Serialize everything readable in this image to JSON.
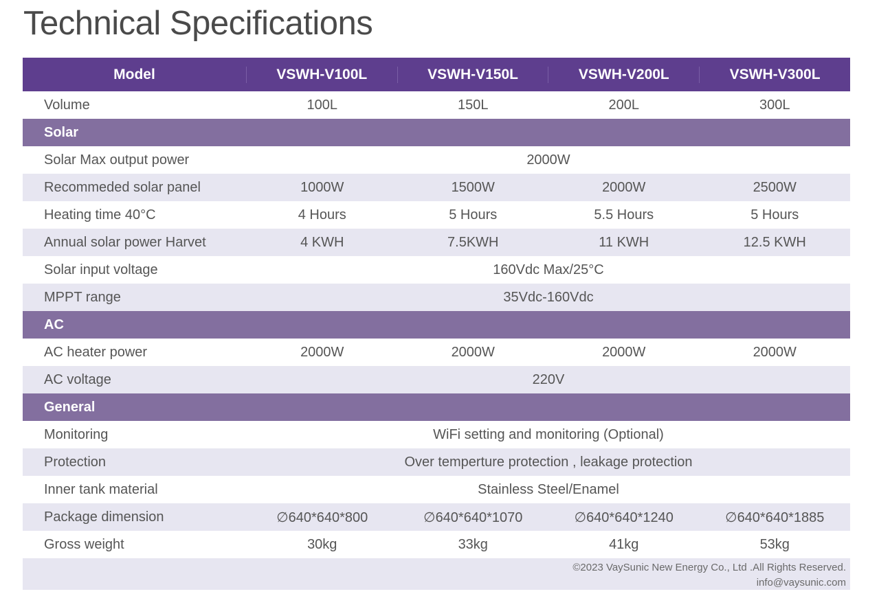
{
  "title": "Technical Specifications",
  "header": {
    "label": "Model",
    "models": [
      "VSWH-V100L",
      "VSWH-V150L",
      "VSWH-V200L",
      "VSWH-V300L"
    ]
  },
  "rows": {
    "volume": {
      "label": "Volume",
      "values": [
        "100L",
        "150L",
        "200L",
        "300L"
      ]
    },
    "solar_section": "Solar",
    "solar_max_output": {
      "label": "Solar Max output power",
      "value": "2000W"
    },
    "recommended_panel": {
      "label": "Recommeded solar panel",
      "values": [
        "1000W",
        "1500W",
        "2000W",
        "2500W"
      ]
    },
    "heating_time": {
      "label": "Heating time 40°C",
      "values": [
        "4 Hours",
        "5 Hours",
        "5.5 Hours",
        "5 Hours"
      ]
    },
    "annual_harvest": {
      "label": "Annual solar power Harvet",
      "values": [
        "4 KWH",
        "7.5KWH",
        "11 KWH",
        "12.5 KWH"
      ]
    },
    "solar_input_voltage": {
      "label": "Solar input voltage",
      "value": "160Vdc Max/25°C"
    },
    "mppt_range": {
      "label": "MPPT range",
      "value": "35Vdc-160Vdc"
    },
    "ac_section": "AC",
    "ac_heater_power": {
      "label": "AC heater power",
      "values": [
        "2000W",
        "2000W",
        "2000W",
        "2000W"
      ]
    },
    "ac_voltage": {
      "label": "AC voltage",
      "value": "220V"
    },
    "general_section": "General",
    "monitoring": {
      "label": "Monitoring",
      "value": "WiFi setting and monitoring (Optional)"
    },
    "protection": {
      "label": "Protection",
      "value": "Over temperture protection , leakage protection"
    },
    "inner_tank": {
      "label": "Inner tank material",
      "value": "Stainless Steel/Enamel"
    },
    "package_dimension": {
      "label": "Package dimension",
      "values": [
        "∅640*640*800",
        "∅640*640*1070",
        "∅640*640*1240",
        "∅640*640*1885"
      ]
    },
    "gross_weight": {
      "label": "Gross weight",
      "values": [
        "30kg",
        "33kg",
        "41kg",
        "53kg"
      ]
    }
  },
  "footer": {
    "copyright": "©2023 VaySunic New Energy Co., Ltd .All Rights Reserved.",
    "email": "info@vaysunic.com"
  }
}
